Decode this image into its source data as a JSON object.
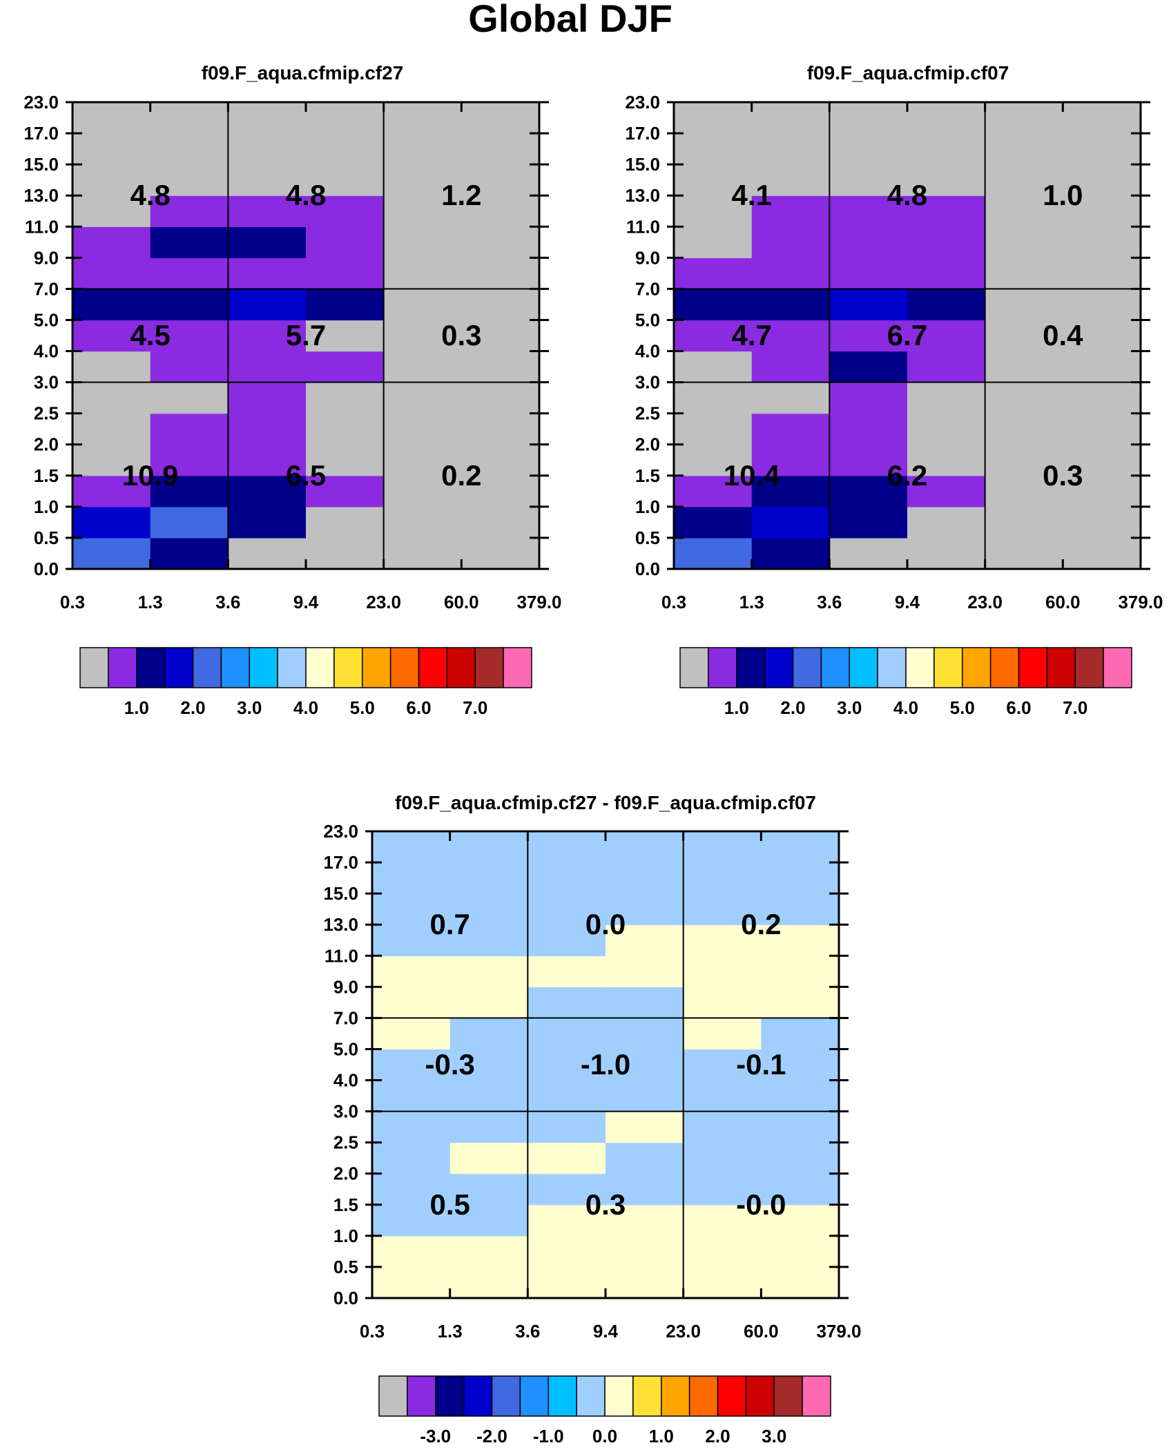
{
  "title": "Global DJF",
  "palette": {
    "main": [
      "#c0c0c0",
      "#8a2be2",
      "#00008b",
      "#0000cd",
      "#4169e1",
      "#1e90ff",
      "#00bfff",
      "#a0cfff",
      "#ffffd0",
      "#ffe135",
      "#ffa500",
      "#ff6a00",
      "#ff0000",
      "#cc0000",
      "#a52a2a",
      "#ff69b4"
    ]
  },
  "chart_data": [
    {
      "type": "heatmap",
      "title": "f09.F_aqua.cfmip.cf27",
      "x_ticks": [
        "0.3",
        "1.3",
        "3.6",
        "9.4",
        "23.0",
        "60.0",
        "379.0"
      ],
      "y_ticks": [
        "0.0",
        "0.5",
        "1.0",
        "1.5",
        "2.0",
        "2.5",
        "3.0",
        "4.0",
        "5.0",
        "7.0",
        "9.0",
        "11.0",
        "13.0",
        "15.0",
        "17.0",
        "23.0"
      ],
      "grid": "on",
      "cells": [
        [
          4,
          2,
          0,
          0,
          0,
          0
        ],
        [
          3,
          4,
          2,
          0,
          0,
          0
        ],
        [
          1,
          2,
          2,
          1,
          0,
          0
        ],
        [
          0,
          1,
          1,
          0,
          0,
          0
        ],
        [
          0,
          1,
          1,
          0,
          0,
          0
        ],
        [
          0,
          0,
          1,
          0,
          0,
          0
        ],
        [
          0,
          1,
          1,
          1,
          0,
          0
        ],
        [
          1,
          1,
          1,
          0,
          0,
          0
        ],
        [
          2,
          2,
          3,
          2,
          0,
          0
        ],
        [
          1,
          1,
          1,
          1,
          0,
          0
        ],
        [
          1,
          2,
          2,
          1,
          0,
          0
        ],
        [
          0,
          1,
          1,
          1,
          0,
          0
        ],
        [
          0,
          0,
          0,
          0,
          0,
          0
        ],
        [
          0,
          0,
          0,
          0,
          0,
          0
        ],
        [
          0,
          0,
          0,
          0,
          0,
          0
        ]
      ],
      "box_values": [
        [
          "10.9",
          "6.5",
          "0.2"
        ],
        [
          "4.5",
          "5.7",
          "0.3"
        ],
        [
          "4.8",
          "4.8",
          "1.2"
        ]
      ]
    },
    {
      "type": "heatmap",
      "title": "f09.F_aqua.cfmip.cf07",
      "x_ticks": [
        "0.3",
        "1.3",
        "3.6",
        "9.4",
        "23.0",
        "60.0",
        "379.0"
      ],
      "y_ticks": [
        "0.0",
        "0.5",
        "1.0",
        "1.5",
        "2.0",
        "2.5",
        "3.0",
        "4.0",
        "5.0",
        "7.0",
        "9.0",
        "11.0",
        "13.0",
        "15.0",
        "17.0",
        "23.0"
      ],
      "grid": "on",
      "cells": [
        [
          4,
          2,
          0,
          0,
          0,
          0
        ],
        [
          2,
          3,
          2,
          0,
          0,
          0
        ],
        [
          1,
          2,
          2,
          1,
          0,
          0
        ],
        [
          0,
          1,
          1,
          0,
          0,
          0
        ],
        [
          0,
          1,
          1,
          0,
          0,
          0
        ],
        [
          0,
          0,
          1,
          0,
          0,
          0
        ],
        [
          0,
          1,
          2,
          1,
          0,
          0
        ],
        [
          1,
          1,
          1,
          1,
          0,
          0
        ],
        [
          2,
          2,
          3,
          2,
          0,
          0
        ],
        [
          1,
          1,
          1,
          1,
          0,
          0
        ],
        [
          0,
          1,
          1,
          1,
          0,
          0
        ],
        [
          0,
          1,
          1,
          1,
          0,
          0
        ],
        [
          0,
          0,
          0,
          0,
          0,
          0
        ],
        [
          0,
          0,
          0,
          0,
          0,
          0
        ],
        [
          0,
          0,
          0,
          0,
          0,
          0
        ]
      ],
      "box_values": [
        [
          "10.4",
          "6.2",
          "0.3"
        ],
        [
          "4.7",
          "6.7",
          "0.4"
        ],
        [
          "4.1",
          "4.8",
          "1.0"
        ]
      ]
    },
    {
      "type": "heatmap",
      "title": "f09.F_aqua.cfmip.cf27 - f09.F_aqua.cfmip.cf07",
      "x_ticks": [
        "0.3",
        "1.3",
        "3.6",
        "9.4",
        "23.0",
        "60.0",
        "379.0"
      ],
      "y_ticks": [
        "0.0",
        "0.5",
        "1.0",
        "1.5",
        "2.0",
        "2.5",
        "3.0",
        "4.0",
        "5.0",
        "7.0",
        "9.0",
        "11.0",
        "13.0",
        "15.0",
        "17.0",
        "23.0"
      ],
      "grid": "on",
      "cells": [
        [
          8,
          8,
          8,
          8,
          8,
          8
        ],
        [
          8,
          8,
          8,
          8,
          8,
          8
        ],
        [
          7,
          7,
          8,
          8,
          8,
          8
        ],
        [
          7,
          7,
          7,
          7,
          7,
          7
        ],
        [
          7,
          8,
          8,
          7,
          7,
          7
        ],
        [
          7,
          7,
          7,
          8,
          7,
          7
        ],
        [
          7,
          7,
          7,
          7,
          7,
          7
        ],
        [
          7,
          7,
          7,
          7,
          7,
          7
        ],
        [
          8,
          7,
          7,
          7,
          8,
          7
        ],
        [
          8,
          8,
          7,
          7,
          8,
          8
        ],
        [
          8,
          8,
          8,
          8,
          8,
          8
        ],
        [
          7,
          7,
          7,
          8,
          8,
          8
        ],
        [
          7,
          7,
          7,
          7,
          7,
          7
        ],
        [
          7,
          7,
          7,
          7,
          7,
          7
        ],
        [
          7,
          7,
          7,
          7,
          7,
          7
        ]
      ],
      "box_values": [
        [
          "0.5",
          "0.3",
          "-0.0"
        ],
        [
          "-0.3",
          "-1.0",
          "-0.1"
        ],
        [
          "0.7",
          "0.0",
          "0.2"
        ]
      ]
    }
  ],
  "colorbars": [
    {
      "labels": [
        "1.0",
        "2.0",
        "3.0",
        "4.0",
        "5.0",
        "6.0",
        "7.0"
      ]
    },
    {
      "labels": [
        "1.0",
        "2.0",
        "3.0",
        "4.0",
        "5.0",
        "6.0",
        "7.0"
      ]
    },
    {
      "labels": [
        "-3.0",
        "-2.0",
        "-1.0",
        "0.0",
        "1.0",
        "2.0",
        "3.0"
      ]
    }
  ]
}
